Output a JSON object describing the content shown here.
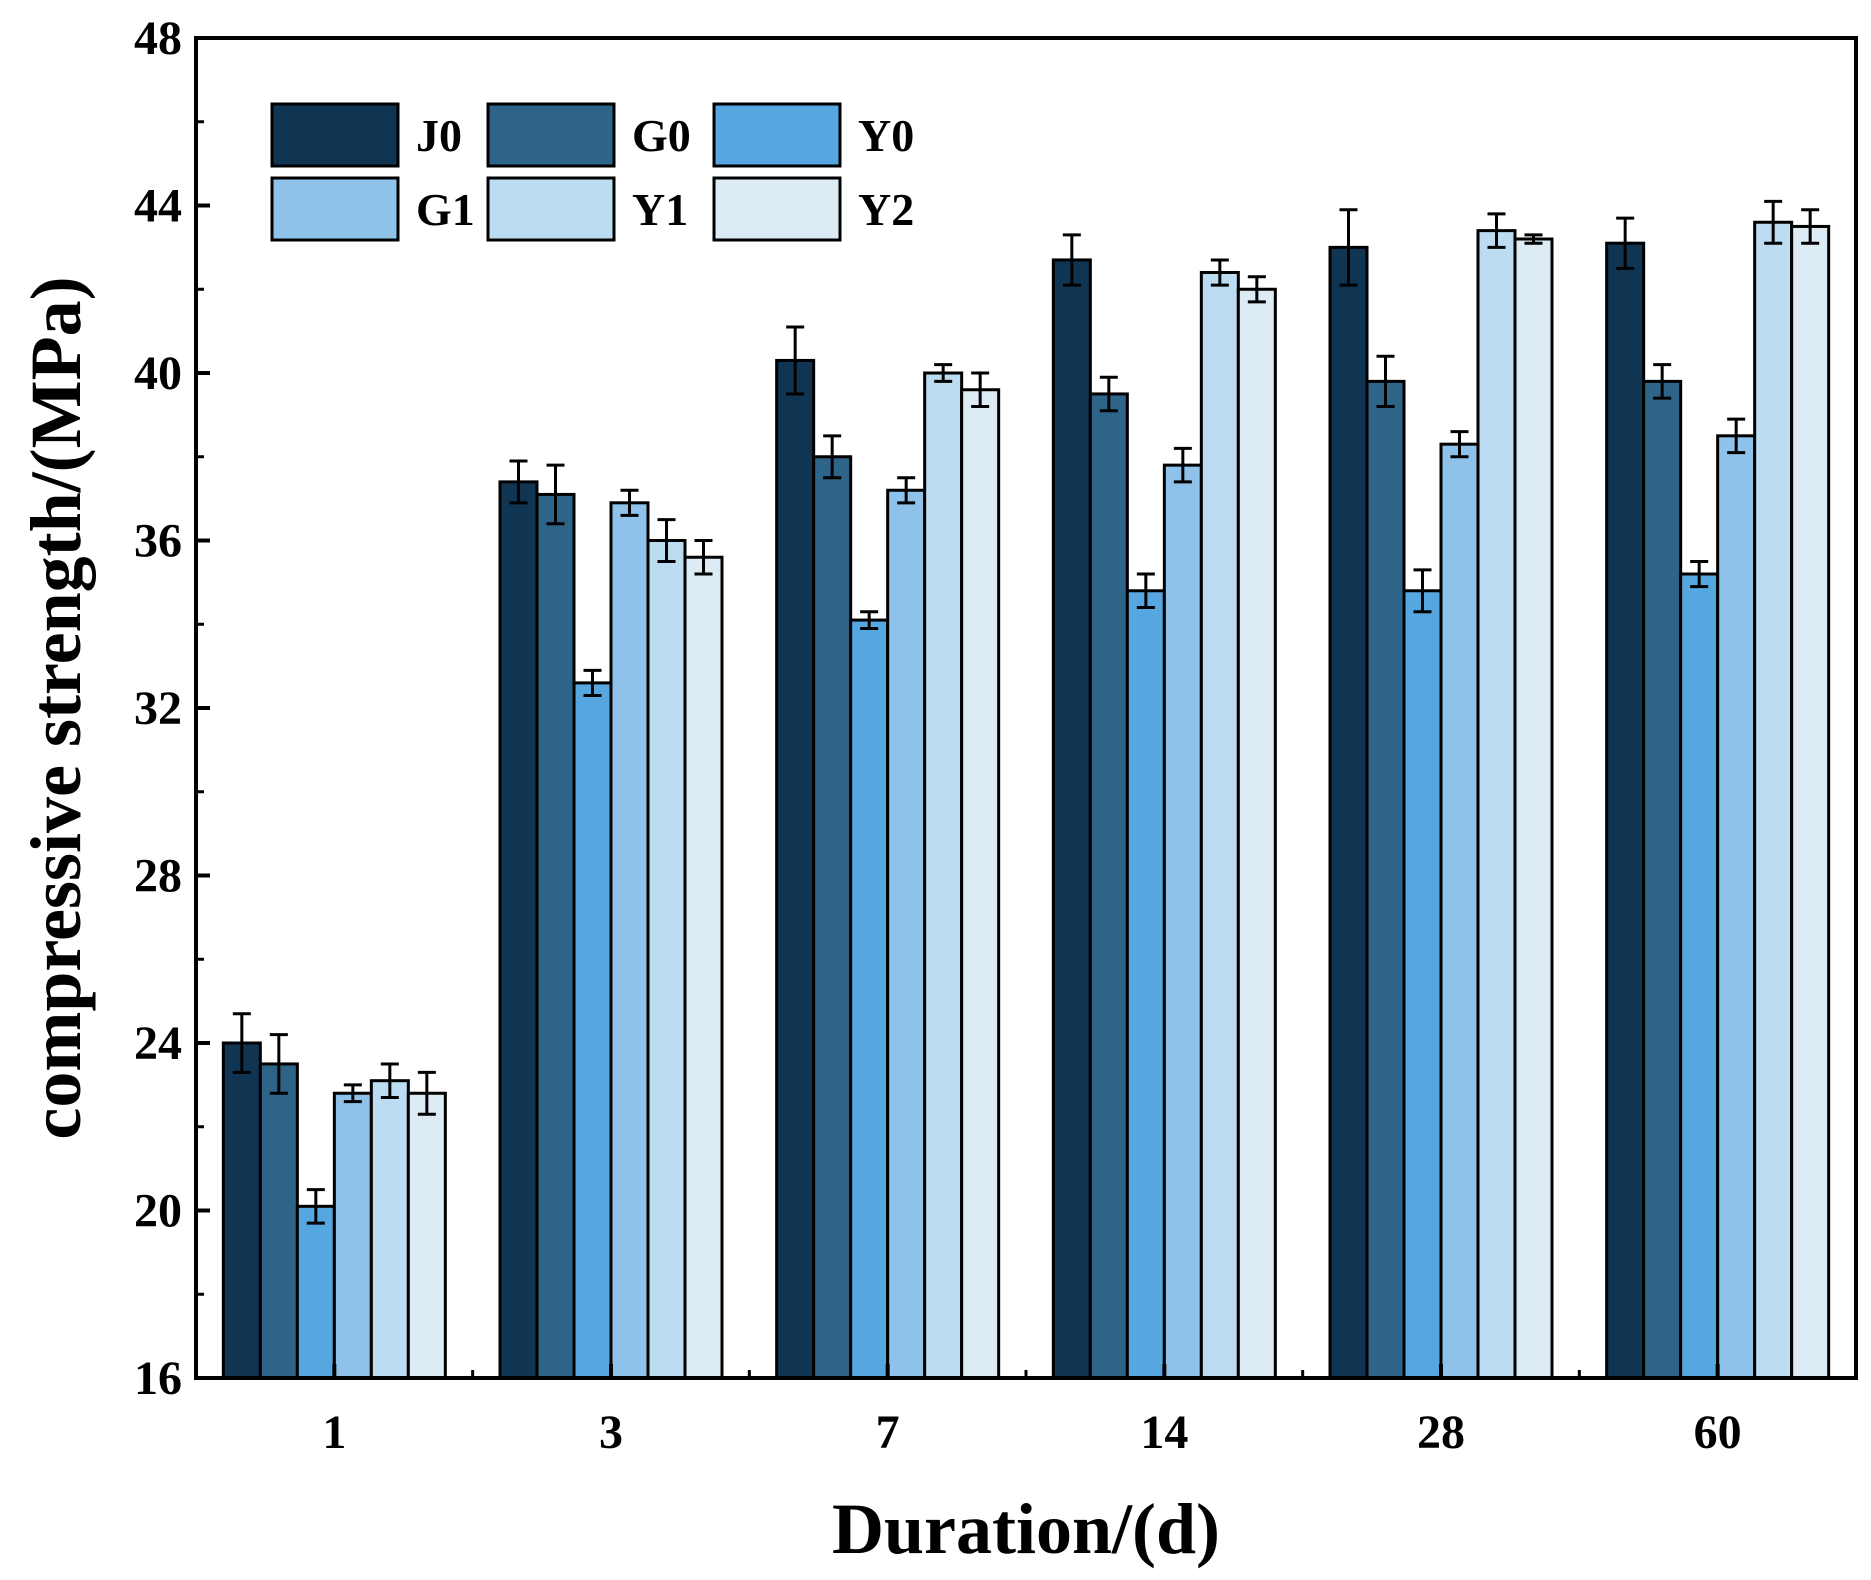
{
  "chart_data": {
    "type": "bar",
    "xlabel": "Duration/(d)",
    "ylabel": "compressive strength/(MPa)",
    "ylim": [
      16,
      48
    ],
    "yticks": [
      "16",
      "20",
      "24",
      "28",
      "32",
      "36",
      "40",
      "44",
      "48"
    ],
    "categories": [
      "1",
      "3",
      "7",
      "14",
      "28",
      "60"
    ],
    "legend_position": "top-left",
    "grid": false,
    "error_bars": true,
    "series": [
      {
        "name": "J0",
        "color": "#0f3553",
        "values": [
          24.0,
          37.4,
          40.3,
          42.7,
          43.0,
          43.1
        ],
        "errors": [
          0.7,
          0.5,
          0.8,
          0.6,
          0.9,
          0.6
        ]
      },
      {
        "name": "G0",
        "color": "#2d6488",
        "values": [
          23.5,
          37.1,
          38.0,
          39.5,
          39.8,
          39.8
        ],
        "errors": [
          0.7,
          0.7,
          0.5,
          0.4,
          0.6,
          0.4
        ]
      },
      {
        "name": "Y0",
        "color": "#56a6df",
        "values": [
          20.1,
          32.6,
          34.1,
          34.8,
          34.8,
          35.2
        ],
        "errors": [
          0.4,
          0.3,
          0.2,
          0.4,
          0.5,
          0.3
        ]
      },
      {
        "name": "G1",
        "color": "#8ec2ea",
        "values": [
          22.8,
          36.9,
          37.2,
          37.8,
          38.3,
          38.5
        ],
        "errors": [
          0.2,
          0.3,
          0.3,
          0.4,
          0.3,
          0.4
        ]
      },
      {
        "name": "Y1",
        "color": "#bcdcf2",
        "values": [
          23.1,
          36.0,
          40.0,
          42.4,
          43.4,
          43.6
        ],
        "errors": [
          0.4,
          0.5,
          0.2,
          0.3,
          0.4,
          0.5
        ]
      },
      {
        "name": "Y2",
        "color": "#ddebf5",
        "values": [
          22.8,
          35.6,
          39.6,
          42.0,
          43.2,
          43.5
        ],
        "errors": [
          0.5,
          0.4,
          0.4,
          0.3,
          0.1,
          0.4
        ]
      }
    ]
  }
}
